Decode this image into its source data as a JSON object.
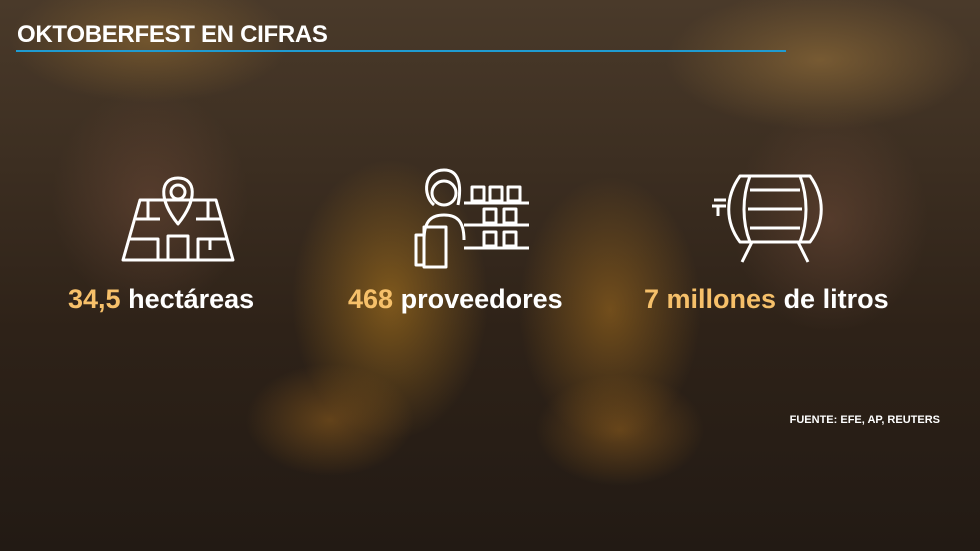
{
  "title": "OKTOBERFEST EN CIFRAS",
  "stats": [
    {
      "icon": "map-pin-icon",
      "value": "34,5",
      "label": "hectáreas"
    },
    {
      "icon": "vendor-icon",
      "value": "468",
      "label": "proveedores"
    },
    {
      "icon": "barrel-icon",
      "value": "7 millones",
      "label": "de litros"
    }
  ],
  "source": "FUENTE: EFE, AP, REUTERS",
  "colors": {
    "accent_rule": "#1f9bd1",
    "highlight": "#f6c06a"
  }
}
